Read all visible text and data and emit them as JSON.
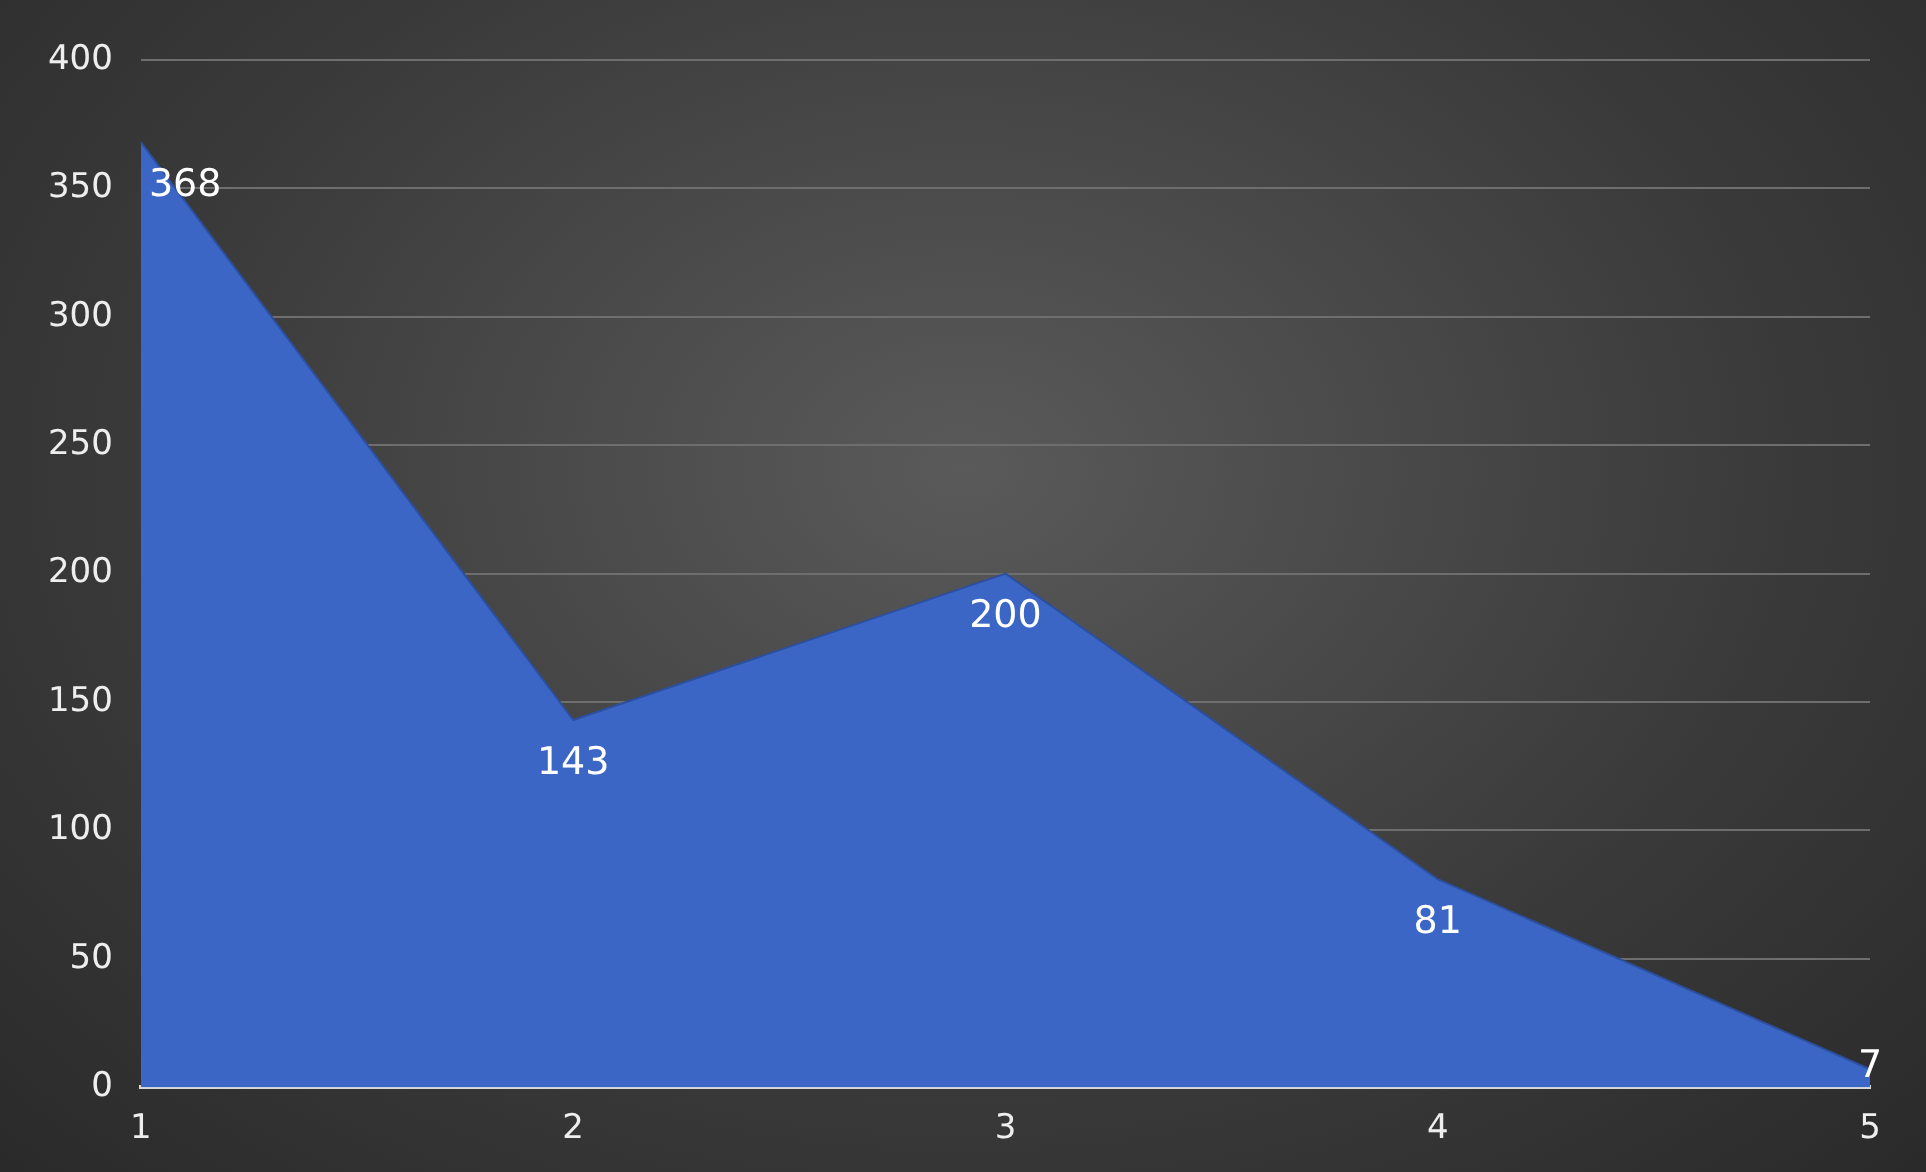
{
  "chart_data": {
    "type": "area",
    "categories": [
      "1",
      "2",
      "3",
      "4",
      "5"
    ],
    "series": [
      {
        "color": "#3b66c6",
        "values": [
          368,
          143,
          200,
          81,
          7
        ]
      }
    ],
    "ylim": [
      0,
      400
    ],
    "yticks": [
      0,
      50,
      100,
      150,
      200,
      250,
      300,
      350,
      400
    ],
    "grid": "y",
    "legend": false,
    "data_labels": true
  }
}
